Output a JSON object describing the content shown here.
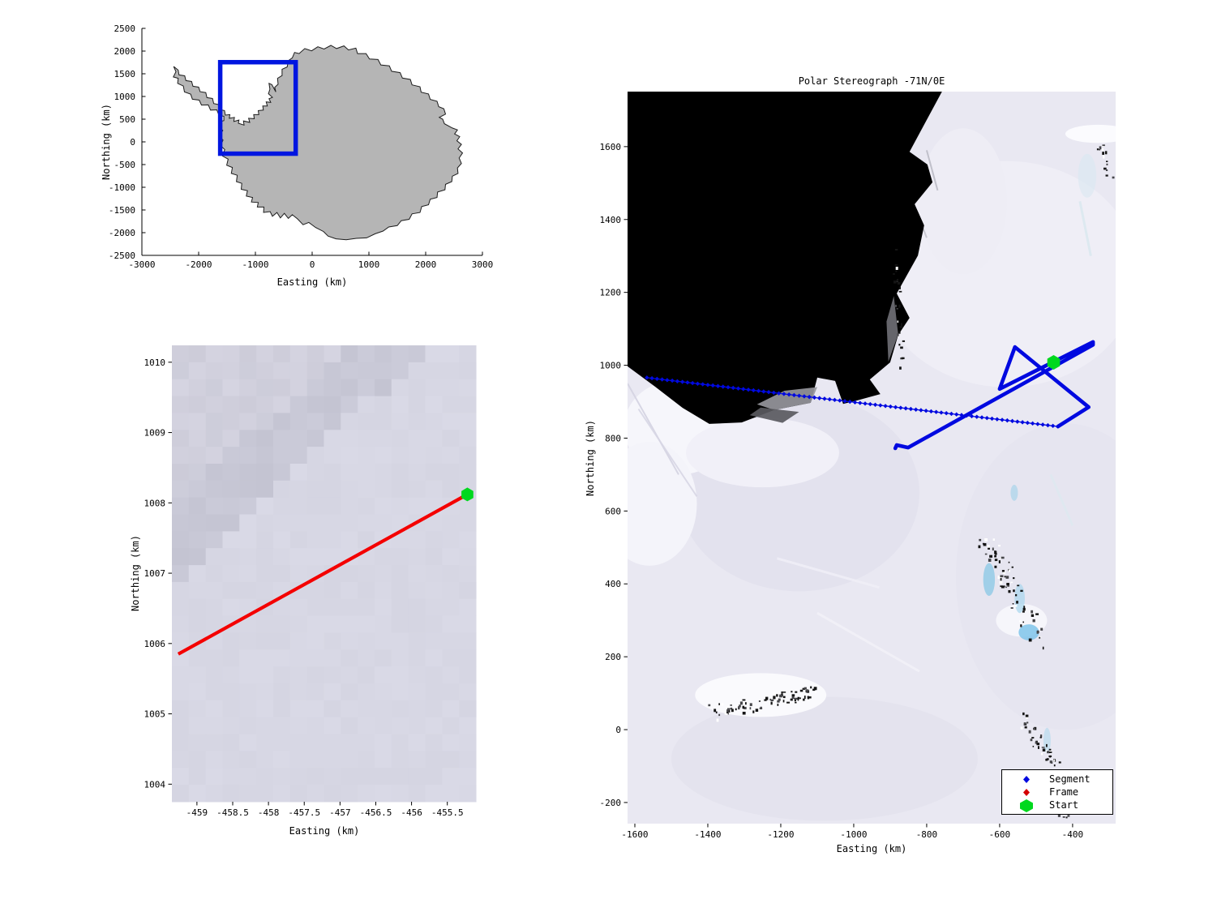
{
  "window": {
    "background": "#ffffff"
  },
  "chart_data": [
    {
      "type": "map-outline",
      "name": "antarctica-overview",
      "title": "",
      "xlabel": "Easting (km)",
      "ylabel": "Northing (km)",
      "xlim": [
        -3000,
        3000
      ],
      "ylim": [
        -2500,
        2500
      ],
      "xticks": [
        -3000,
        -2000,
        -1000,
        0,
        1000,
        2000,
        3000
      ],
      "yticks": [
        -2500,
        -2000,
        -1500,
        -1000,
        -500,
        0,
        500,
        1000,
        1500,
        2000,
        2500
      ],
      "land_color": "#b5b5b5",
      "outline_color": "#1c1c1c",
      "region_box": {
        "x0": -1620,
        "y0": -260,
        "x1": -290,
        "y1": 1755,
        "color": "#0016e0",
        "linewidth": 5.5
      },
      "coastline": [
        [
          -2440,
          1660
        ],
        [
          -2400,
          1545
        ],
        [
          -2445,
          1430
        ],
        [
          -2360,
          1400
        ],
        [
          -2370,
          1290
        ],
        [
          -2270,
          1230
        ],
        [
          -2250,
          1100
        ],
        [
          -2140,
          1050
        ],
        [
          -2110,
          940
        ],
        [
          -1990,
          920
        ],
        [
          -1950,
          810
        ],
        [
          -1830,
          815
        ],
        [
          -1790,
          700
        ],
        [
          -1680,
          705
        ],
        [
          -1640,
          580
        ],
        [
          -1555,
          565
        ],
        [
          -1555,
          470
        ],
        [
          -1640,
          440
        ],
        [
          -1645,
          330
        ],
        [
          -1575,
          250
        ],
        [
          -1640,
          130
        ],
        [
          -1570,
          40
        ],
        [
          -1615,
          -80
        ],
        [
          -1540,
          -170
        ],
        [
          -1580,
          -310
        ],
        [
          -1480,
          -380
        ],
        [
          -1505,
          -515
        ],
        [
          -1405,
          -565
        ],
        [
          -1425,
          -695
        ],
        [
          -1320,
          -735
        ],
        [
          -1335,
          -875
        ],
        [
          -1240,
          -915
        ],
        [
          -1250,
          -1045
        ],
        [
          -1140,
          -1075
        ],
        [
          -1160,
          -1195
        ],
        [
          -1050,
          -1225
        ],
        [
          -1070,
          -1325
        ],
        [
          -950,
          -1335
        ],
        [
          -965,
          -1435
        ],
        [
          -850,
          -1435
        ],
        [
          -855,
          -1555
        ],
        [
          -740,
          -1535
        ],
        [
          -700,
          -1640
        ],
        [
          -620,
          -1555
        ],
        [
          -560,
          -1675
        ],
        [
          -490,
          -1575
        ],
        [
          -420,
          -1685
        ],
        [
          -350,
          -1605
        ],
        [
          -260,
          -1695
        ],
        [
          -160,
          -1825
        ],
        [
          -60,
          -1775
        ],
        [
          60,
          -1885
        ],
        [
          200,
          -1975
        ],
        [
          280,
          -2075
        ],
        [
          420,
          -2135
        ],
        [
          600,
          -2155
        ],
        [
          780,
          -2125
        ],
        [
          960,
          -2115
        ],
        [
          1110,
          -2025
        ],
        [
          1250,
          -1965
        ],
        [
          1350,
          -1875
        ],
        [
          1500,
          -1845
        ],
        [
          1570,
          -1735
        ],
        [
          1710,
          -1705
        ],
        [
          1760,
          -1585
        ],
        [
          1900,
          -1555
        ],
        [
          1930,
          -1425
        ],
        [
          2050,
          -1385
        ],
        [
          2080,
          -1265
        ],
        [
          2200,
          -1225
        ],
        [
          2210,
          -1105
        ],
        [
          2340,
          -1055
        ],
        [
          2350,
          -935
        ],
        [
          2460,
          -875
        ],
        [
          2470,
          -755
        ],
        [
          2570,
          -695
        ],
        [
          2560,
          -575
        ],
        [
          2630,
          -475
        ],
        [
          2590,
          -355
        ],
        [
          2650,
          -245
        ],
        [
          2570,
          -155
        ],
        [
          2630,
          -55
        ],
        [
          2550,
          25
        ],
        [
          2600,
          115
        ],
        [
          2510,
          175
        ],
        [
          2560,
          265
        ],
        [
          2470,
          305
        ],
        [
          2330,
          400
        ],
        [
          2300,
          500
        ],
        [
          2240,
          540
        ],
        [
          2350,
          610
        ],
        [
          2320,
          730
        ],
        [
          2230,
          775
        ],
        [
          2200,
          895
        ],
        [
          2080,
          935
        ],
        [
          2050,
          1055
        ],
        [
          1920,
          1095
        ],
        [
          1900,
          1215
        ],
        [
          1760,
          1255
        ],
        [
          1730,
          1375
        ],
        [
          1590,
          1405
        ],
        [
          1550,
          1525
        ],
        [
          1400,
          1555
        ],
        [
          1360,
          1675
        ],
        [
          1210,
          1695
        ],
        [
          1160,
          1815
        ],
        [
          1010,
          1825
        ],
        [
          950,
          1945
        ],
        [
          800,
          1945
        ],
        [
          770,
          2065
        ],
        [
          640,
          2025
        ],
        [
          560,
          2115
        ],
        [
          430,
          2055
        ],
        [
          330,
          2125
        ],
        [
          210,
          2045
        ],
        [
          100,
          2095
        ],
        [
          -10,
          2005
        ],
        [
          -130,
          2055
        ],
        [
          -230,
          1945
        ],
        [
          -310,
          1970
        ],
        [
          -350,
          1850
        ],
        [
          -420,
          1790
        ],
        [
          -440,
          1650
        ],
        [
          -530,
          1600
        ],
        [
          -530,
          1460
        ],
        [
          -610,
          1400
        ],
        [
          -600,
          1270
        ],
        [
          -660,
          1200
        ],
        [
          -640,
          1100
        ],
        [
          -710,
          1260
        ],
        [
          -760,
          1290
        ],
        [
          -745,
          1160
        ],
        [
          -770,
          1060
        ],
        [
          -700,
          980
        ],
        [
          -760,
          950
        ],
        [
          -730,
          870
        ],
        [
          -810,
          880
        ],
        [
          -790,
          790
        ],
        [
          -870,
          790
        ],
        [
          -860,
          700
        ],
        [
          -950,
          690
        ],
        [
          -940,
          600
        ],
        [
          -1030,
          600
        ],
        [
          -1020,
          510
        ],
        [
          -1120,
          520
        ],
        [
          -1100,
          430
        ],
        [
          -1210,
          460
        ],
        [
          -1200,
          370
        ],
        [
          -1300,
          410
        ],
        [
          -1290,
          480
        ],
        [
          -1380,
          450
        ],
        [
          -1370,
          540
        ],
        [
          -1460,
          520
        ],
        [
          -1450,
          600
        ],
        [
          -1530,
          590
        ],
        [
          -1545,
          690
        ],
        [
          -1625,
          710
        ],
        [
          -1645,
          820
        ],
        [
          -1735,
          845
        ],
        [
          -1755,
          955
        ],
        [
          -1855,
          975
        ],
        [
          -1875,
          1085
        ],
        [
          -1975,
          1105
        ],
        [
          -2000,
          1205
        ],
        [
          -2100,
          1225
        ],
        [
          -2125,
          1330
        ],
        [
          -2225,
          1350
        ],
        [
          -2245,
          1455
        ],
        [
          -2345,
          1475
        ],
        [
          -2360,
          1580
        ]
      ]
    },
    {
      "type": "image-detail",
      "name": "frame-detail",
      "title": "",
      "xlabel": "Easting (km)",
      "ylabel": "Northing (km)",
      "xlim": [
        -459.35,
        -455.1
      ],
      "ylim": [
        1003.75,
        1010.24
      ],
      "xticks": [
        -459,
        -458.5,
        -458,
        -457.5,
        -457,
        -456.5,
        -456,
        -455.5
      ],
      "yticks": [
        1004,
        1005,
        1006,
        1007,
        1008,
        1009,
        1010
      ],
      "frame_line": {
        "color": "#f40000",
        "points": [
          [
            -459.26,
            1005.85
          ],
          [
            -455.22,
            1008.12
          ]
        ]
      },
      "start_marker": {
        "x": -455.22,
        "y": 1008.12,
        "color": "#00d81e"
      }
    },
    {
      "type": "satellite-track",
      "name": "polar-stereographic-main",
      "title": "Polar Stereograph -71N/0E",
      "xlabel": "Easting (km)",
      "ylabel": "Northing (km)",
      "xlim": [
        -1620,
        -282
      ],
      "ylim": [
        -258,
        1751
      ],
      "xticks": [
        -1600,
        -1400,
        -1200,
        -1000,
        -800,
        -600,
        -400
      ],
      "yticks": [
        -200,
        0,
        200,
        400,
        600,
        800,
        1000,
        1200,
        1400,
        1600
      ],
      "ocean_color": "#000000",
      "ice_color": "#e9e8f2",
      "track_color": "#0009e0",
      "segment_line": [
        [
          -1567,
          966
        ],
        [
          -440,
          832
        ]
      ],
      "flight_path": [
        [
          -440,
          832
        ],
        [
          -356,
          885
        ],
        [
          -558,
          1050
        ],
        [
          -600,
          935
        ],
        [
          -344,
          1064
        ],
        [
          -344,
          1056
        ],
        [
          -851,
          774
        ],
        [
          -882,
          781
        ],
        [
          -886,
          772
        ]
      ],
      "start_marker": {
        "x": -452,
        "y": 1008,
        "color": "#00d81e"
      },
      "ocean": [
        [
          -1620,
          1751
        ],
        [
          -758,
          1751
        ],
        [
          -847,
          1586
        ],
        [
          -798,
          1551
        ],
        [
          -784,
          1502
        ],
        [
          -833,
          1442
        ],
        [
          -807,
          1384
        ],
        [
          -824,
          1301
        ],
        [
          -882,
          1197
        ],
        [
          -847,
          1130
        ],
        [
          -878,
          1083
        ],
        [
          -900,
          1008
        ],
        [
          -956,
          961
        ],
        [
          -927,
          921
        ],
        [
          -993,
          903
        ],
        [
          -1029,
          894
        ],
        [
          -1051,
          957
        ],
        [
          -1100,
          966
        ],
        [
          -1118,
          897
        ],
        [
          -1218,
          877
        ],
        [
          -1307,
          843
        ],
        [
          -1396,
          839
        ],
        [
          -1469,
          883
        ],
        [
          -1544,
          941
        ],
        [
          -1620,
          997
        ]
      ],
      "legend": {
        "items": [
          {
            "label": "Segment",
            "marker": "diamond",
            "color": "#0009e0"
          },
          {
            "label": "Frame",
            "marker": "diamond",
            "color": "#d40000"
          },
          {
            "label": "Start",
            "marker": "hexagon",
            "color": "#00d81e"
          }
        ]
      }
    }
  ]
}
